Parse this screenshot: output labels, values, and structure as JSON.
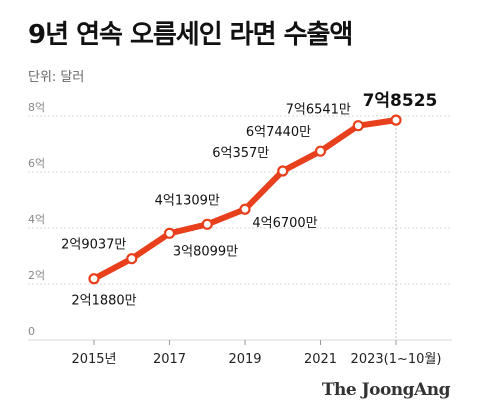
{
  "header": {
    "title": "9년 연속 오름세인 라면 수출액",
    "unit": "단위: 달러"
  },
  "source": "The JoongAng",
  "colors": {
    "line": "#e8401c",
    "marker_fill": "#ffffff",
    "grid": "#d9d9d9",
    "highlight_line": "#bbbbbb",
    "text": "#222222",
    "muted": "#888888"
  },
  "chart_data": {
    "type": "line",
    "title": "9년 연속 오름세인 라면 수출액",
    "xlabel": "",
    "ylabel": "",
    "unit": "달러",
    "x": [
      2015,
      2016,
      2017,
      2018,
      2019,
      2020,
      2021,
      2022,
      2023
    ],
    "y_tick_values": [
      0,
      2,
      4,
      6,
      8
    ],
    "y_tick_labels": [
      "0",
      "2억",
      "4억",
      "6억",
      "8억"
    ],
    "x_tick_values": [
      2015,
      2017,
      2019,
      2021,
      2023
    ],
    "x_tick_labels": [
      "2015년",
      "2017",
      "2019",
      "2021",
      "2023(1~10월)"
    ],
    "ylim": [
      0,
      8
    ],
    "grid": "horizontal",
    "series": [
      {
        "values": [
          2.188,
          2.9037,
          3.8099,
          4.1309,
          4.67,
          6.0357,
          6.744,
          7.6541,
          7.8525
        ],
        "labels": [
          "2억1880만",
          "2억9037만",
          "3억8099만",
          "4억1309만",
          "4억6700만",
          "6억357만",
          "6억7440만",
          "7억6541만",
          "7억8525"
        ]
      }
    ]
  }
}
